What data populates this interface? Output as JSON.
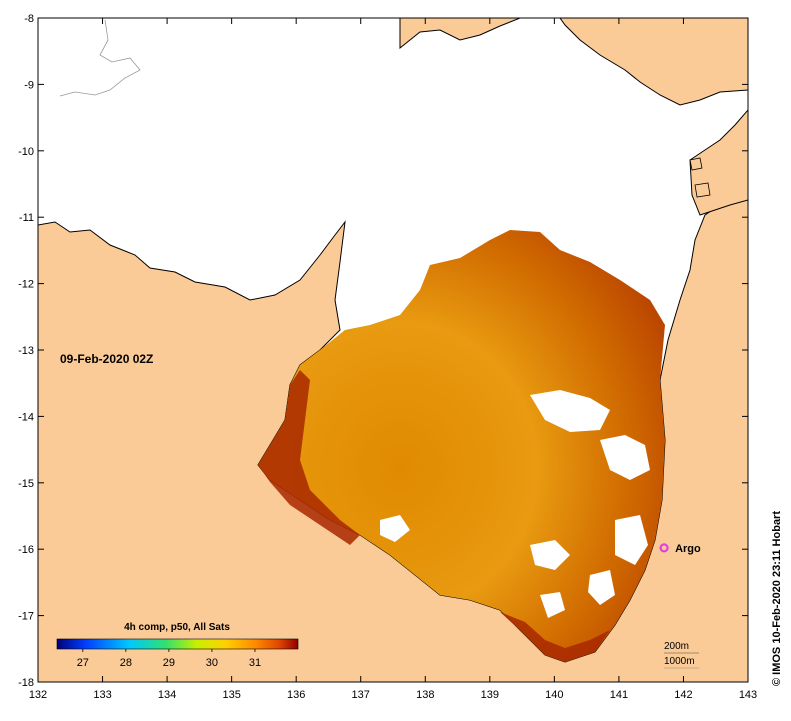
{
  "map": {
    "date_label": "09-Feb-2020 02Z",
    "credit": "© IMOS 10-Feb-2020 23:11 Hobart",
    "x_ticks": [
      "132",
      "133",
      "134",
      "135",
      "136",
      "137",
      "138",
      "139",
      "140",
      "141",
      "142",
      "143"
    ],
    "y_ticks": [
      "-8",
      "-9",
      "-10",
      "-11",
      "-12",
      "-13",
      "-14",
      "-15",
      "-16",
      "-17",
      "-18"
    ],
    "x_range": [
      132,
      143
    ],
    "y_range": [
      -18,
      -8
    ],
    "argo": {
      "label": "Argo",
      "lon": 141.7,
      "lat": -15.98,
      "color": "#e040e0"
    },
    "depth_labels": [
      "200m",
      "1000m"
    ],
    "colors": {
      "land": "#fbcb97",
      "no_data": "#ffffff",
      "coast": "#000000"
    }
  },
  "colorbar": {
    "title": "4h comp, p50, All Sats",
    "ticks": [
      "27",
      "28",
      "29",
      "30",
      "31"
    ],
    "range": [
      26.4,
      32.0
    ],
    "stops": [
      "#00007a",
      "#0040ff",
      "#00c8ff",
      "#30e070",
      "#c8f000",
      "#ffd000",
      "#ff8c00",
      "#e04800",
      "#900000"
    ]
  }
}
